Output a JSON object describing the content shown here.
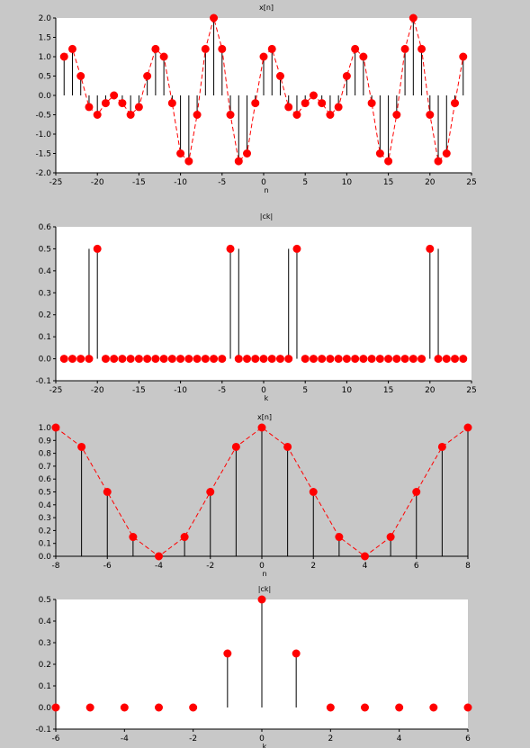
{
  "chart_data": [
    {
      "type": "stem",
      "title": "x[n]",
      "xlabel": "n",
      "xlim": [
        -25,
        25
      ],
      "ylim": [
        -2,
        2
      ],
      "xticks": [
        -25,
        -20,
        -15,
        -10,
        -5,
        0,
        5,
        10,
        15,
        20,
        25
      ],
      "yticks": [
        -2.0,
        -1.5,
        -1.0,
        -0.5,
        0.0,
        0.5,
        1.0,
        1.5,
        2.0
      ],
      "ytick_labels": [
        "-2.0",
        "-1.5",
        "-1.0",
        "-0.5",
        "0.0",
        "0.5",
        "1.0",
        "1.5",
        "2.0"
      ],
      "connect_line": true,
      "background": "#ffffff",
      "x": [
        -24,
        -23,
        -22,
        -21,
        -20,
        -19,
        -18,
        -17,
        -16,
        -15,
        -14,
        -13,
        -12,
        -11,
        -10,
        -9,
        -8,
        -7,
        -6,
        -5,
        -4,
        -3,
        -2,
        -1,
        0,
        1,
        2,
        3,
        4,
        5,
        6,
        7,
        8,
        9,
        10,
        11,
        12,
        13,
        14,
        15,
        16,
        17,
        18,
        19,
        20,
        21,
        22,
        23,
        24
      ],
      "values": [
        1.0,
        1.2,
        0.5,
        -0.3,
        -0.5,
        -0.2,
        0.0,
        -0.2,
        -0.5,
        -0.3,
        0.5,
        1.2,
        1.0,
        -0.2,
        -1.5,
        -1.7,
        -0.5,
        1.2,
        2.0,
        1.2,
        -0.5,
        -1.7,
        -1.5,
        -0.2,
        1.0,
        1.2,
        0.5,
        -0.3,
        -0.5,
        -0.2,
        0.0,
        -0.2,
        -0.5,
        -0.3,
        0.5,
        1.2,
        1.0,
        -0.2,
        -1.5,
        -1.7,
        -0.5,
        1.2,
        2.0,
        1.2,
        -0.5,
        -1.7,
        -1.5,
        -0.2,
        1.0
      ]
    },
    {
      "type": "stem",
      "title": "|ck|",
      "xlabel": "k",
      "xlim": [
        -25,
        25
      ],
      "ylim": [
        -0.1,
        0.6
      ],
      "xticks": [
        -25,
        -20,
        -15,
        -10,
        -5,
        0,
        5,
        10,
        15,
        20,
        25
      ],
      "yticks": [
        -0.1,
        0.0,
        0.1,
        0.2,
        0.3,
        0.4,
        0.5,
        0.6
      ],
      "ytick_labels": [
        "-0.1",
        "0.0",
        "0.1",
        "0.2",
        "0.3",
        "0.4",
        "0.5",
        "0.6"
      ],
      "connect_line": false,
      "background": "#ffffff",
      "x": [
        -24,
        -23,
        -22,
        -21,
        -20,
        -19,
        -18,
        -17,
        -16,
        -15,
        -14,
        -13,
        -12,
        -11,
        -10,
        -9,
        -8,
        -7,
        -6,
        -5,
        -4,
        -3,
        -2,
        -1,
        0,
        1,
        2,
        3,
        4,
        5,
        6,
        7,
        8,
        9,
        10,
        11,
        12,
        13,
        14,
        15,
        16,
        17,
        18,
        19,
        20,
        21,
        22,
        23,
        24
      ],
      "values": [
        0,
        0,
        0,
        0,
        0.5,
        0,
        0,
        0,
        0,
        0,
        0,
        0,
        0,
        0,
        0,
        0,
        0,
        0,
        0,
        0,
        0.5,
        0,
        0,
        0,
        0,
        0,
        0,
        0,
        0.5,
        0,
        0,
        0,
        0,
        0,
        0,
        0,
        0,
        0,
        0,
        0,
        0,
        0,
        0,
        0,
        0.5,
        0,
        0,
        0,
        0
      ],
      "extra_stems_x": [
        -21,
        -3,
        3,
        21
      ],
      "extra_stems_values": [
        0.5,
        0.5,
        0.5,
        0.5
      ]
    },
    {
      "type": "stem",
      "title": "x[n]",
      "xlabel": "n",
      "xlim": [
        -8,
        8
      ],
      "ylim": [
        0,
        1
      ],
      "xticks": [
        -8,
        -6,
        -4,
        -2,
        0,
        2,
        4,
        6,
        8
      ],
      "yticks": [
        0.0,
        0.1,
        0.2,
        0.3,
        0.4,
        0.5,
        0.6,
        0.7,
        0.8,
        0.9,
        1.0
      ],
      "ytick_labels": [
        "0.0",
        "0.1",
        "0.2",
        "0.3",
        "0.4",
        "0.5",
        "0.6",
        "0.7",
        "0.8",
        "0.9",
        "1.0"
      ],
      "connect_line": true,
      "background": "#c8c8c8",
      "x": [
        -8,
        -7,
        -6,
        -5,
        -4,
        -3,
        -2,
        -1,
        0,
        1,
        2,
        3,
        4,
        5,
        6,
        7,
        8
      ],
      "values": [
        1.0,
        0.85,
        0.5,
        0.15,
        0.0,
        0.15,
        0.5,
        0.85,
        1.0,
        0.85,
        0.5,
        0.15,
        0.0,
        0.15,
        0.5,
        0.85,
        1.0
      ]
    },
    {
      "type": "stem",
      "title": "|ck|",
      "xlabel": "k",
      "xlim": [
        -6,
        6
      ],
      "ylim": [
        -0.1,
        0.5
      ],
      "xticks": [
        -6,
        -4,
        -2,
        0,
        2,
        4,
        6
      ],
      "yticks": [
        -0.1,
        0.0,
        0.1,
        0.2,
        0.3,
        0.4,
        0.5
      ],
      "ytick_labels": [
        "-0.1",
        "0.0",
        "0.1",
        "0.2",
        "0.3",
        "0.4",
        "0.5"
      ],
      "connect_line": false,
      "background": "#ffffff",
      "x": [
        -6,
        -5,
        -4,
        -3,
        -2,
        -1,
        0,
        1,
        2,
        3,
        4,
        5,
        6
      ],
      "values": [
        0,
        0,
        0,
        0,
        0,
        0.25,
        0.5,
        0.25,
        0,
        0,
        0,
        0,
        0
      ]
    }
  ],
  "colors": {
    "marker": "#ff0000",
    "line": "#ff0000",
    "stem": "#000000"
  }
}
